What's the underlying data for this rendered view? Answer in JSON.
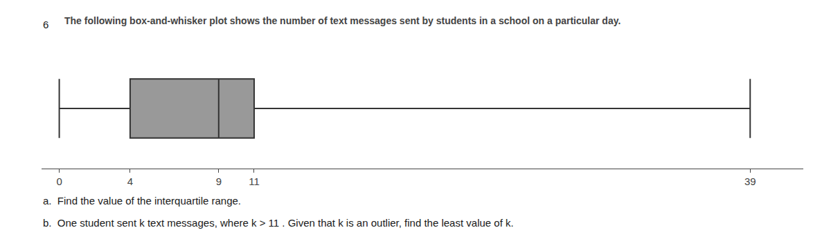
{
  "chart_data": {
    "type": "box",
    "title": "The following box-and-whisker plot shows the number of text messages sent by students in a school on a particular day.",
    "annotations": [
      "6",
      "a.  Find the value of the interquartile range.",
      "b.  One student sent k text messages, where k > 11 . Given that k is an outlier, find the least value of k."
    ],
    "min": 0,
    "q1": 4,
    "median": 9,
    "q3": 11,
    "max": 39,
    "color": "#333333",
    "orientation": "horizontal",
    "xlim": [
      -1,
      42
    ],
    "xticks": [
      0,
      4,
      9,
      11,
      39
    ],
    "grid": false,
    "tick_labels": "x"
  }
}
